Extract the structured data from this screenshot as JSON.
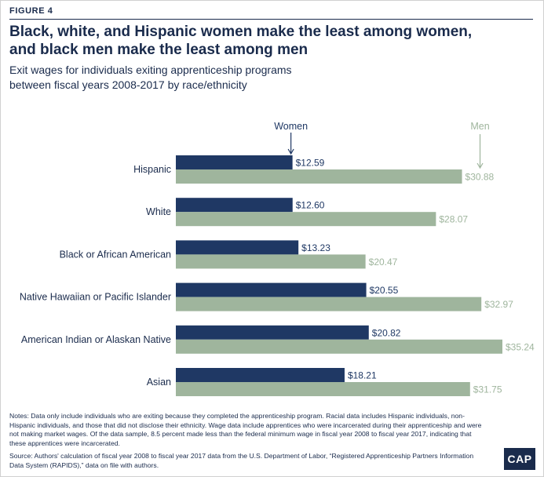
{
  "figure_label": "FIGURE 4",
  "title_line1": "Black, white, and Hispanic women make the least among women,",
  "title_line2": "and black men make the least among men",
  "subtitle_line1": "Exit wages for individuals exiting apprenticeship programs",
  "subtitle_line2": "between fiscal years 2008-2017 by race/ethnicity",
  "notes": "Notes: Data only include individuals who are exiting because they completed the apprenticeship program. Racial data includes Hispanic individuals, non-Hispanic individuals, and those that did not disclose their ethnicity. Wage data include apprentices who were incarcerated during their apprenticeship and were not making market wages. Of the data sample, 8.5 percent made less than the federal minimum wage in fiscal year 2008 to fiscal year 2017, indicating that these apprentices were incarcerated.",
  "source": "Source: Authors' calculation of fiscal year 2008 to fiscal year 2017 data from the U.S. Department of Labor, “Registered Apprenticeship Partners Information Data System (RAPIDS),” data on file with authors.",
  "logo_text": "CAP",
  "colors": {
    "women": "#1f3864",
    "men": "#9fb59d",
    "text": "#1a2b4c"
  },
  "chart_data": {
    "type": "bar",
    "orientation": "horizontal",
    "categories": [
      "Hispanic",
      "White",
      "Black or African American",
      "Native Hawaiian or Pacific Islander",
      "American Indian or Alaskan Native",
      "Asian"
    ],
    "series": [
      {
        "name": "Women",
        "values": [
          12.59,
          12.6,
          13.23,
          20.55,
          20.82,
          18.21
        ],
        "labels": [
          "$12.59",
          "$12.60",
          "$13.23",
          "$20.55",
          "$20.82",
          "$18.21"
        ]
      },
      {
        "name": "Men",
        "values": [
          30.88,
          28.07,
          20.47,
          32.97,
          35.24,
          31.75
        ],
        "labels": [
          "$30.88",
          "$28.07",
          "$20.47",
          "$32.97",
          "$35.24",
          "$31.75"
        ]
      }
    ],
    "xlim": [
      0,
      35.24
    ],
    "grid": false,
    "legend": "top, arrow-annotated"
  }
}
